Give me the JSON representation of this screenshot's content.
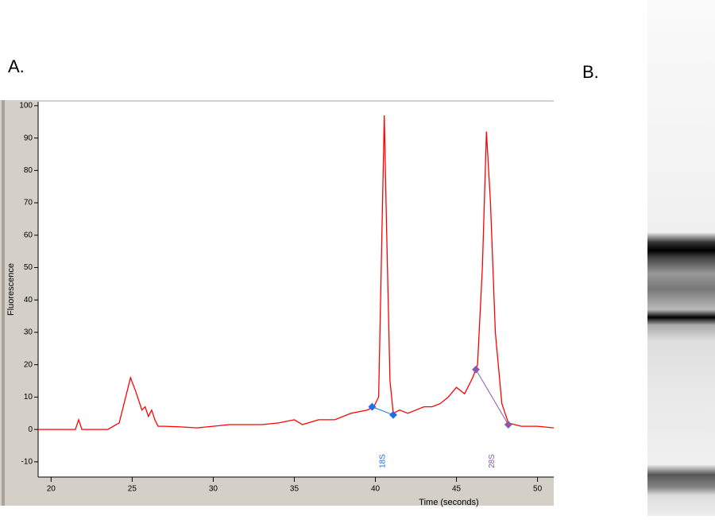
{
  "panel_labels": {
    "a": "A.",
    "b": "B."
  },
  "chart_data": {
    "type": "line",
    "ylabel": "Fluorescence",
    "xlabel": "Time (seconds)",
    "xlim": [
      19.2,
      51
    ],
    "ylim": [
      -14.7,
      101.2
    ],
    "xticks": [
      20,
      25,
      30,
      35,
      40,
      45,
      50
    ],
    "yticks": [
      -10,
      0,
      10,
      20,
      30,
      40,
      50,
      60,
      70,
      80,
      90,
      100
    ],
    "series": [
      {
        "color": "#ff0000",
        "x": [
          19.2,
          21.5,
          21.7,
          21.9,
          23.5,
          24.2,
          24.6,
          24.9,
          25.2,
          25.6,
          25.8,
          26.0,
          26.2,
          26.4,
          26.6,
          27.0,
          28.0,
          29.0,
          30.0,
          31.0,
          32.0,
          33.0,
          34.0,
          35.0,
          35.5,
          36.5,
          37.5,
          38.5,
          39.5,
          39.9,
          40.2,
          40.4,
          40.55,
          40.7,
          40.9,
          41.1,
          41.5,
          42.0,
          42.5,
          43.0,
          43.5,
          44.0,
          44.5,
          45.0,
          45.5,
          46.0,
          46.3,
          46.6,
          46.85,
          47.1,
          47.4,
          47.8,
          48.2,
          49.0,
          50.0,
          51.0
        ],
        "values": [
          0,
          0,
          3,
          0,
          0,
          2,
          10,
          16,
          12,
          6,
          7,
          4,
          6,
          3,
          1,
          1,
          0.8,
          0.5,
          1,
          1.5,
          1.5,
          1.5,
          2,
          3,
          1.5,
          3,
          3,
          5,
          6,
          7,
          10,
          60,
          97,
          60,
          15,
          5,
          6,
          5,
          6,
          7,
          7,
          8,
          10,
          13,
          11,
          16,
          20,
          50,
          92,
          70,
          30,
          8,
          2,
          1,
          1,
          0.5
        ]
      }
    ],
    "peaks": [
      {
        "name": "18S",
        "color": "#1e6fe0",
        "x": [
          39.8,
          41.1
        ],
        "values": [
          7,
          4.5
        ]
      },
      {
        "name": "28S",
        "color": "#8a5aa8",
        "x": [
          46.2,
          48.2
        ],
        "values": [
          18.5,
          1.5
        ]
      }
    ]
  }
}
